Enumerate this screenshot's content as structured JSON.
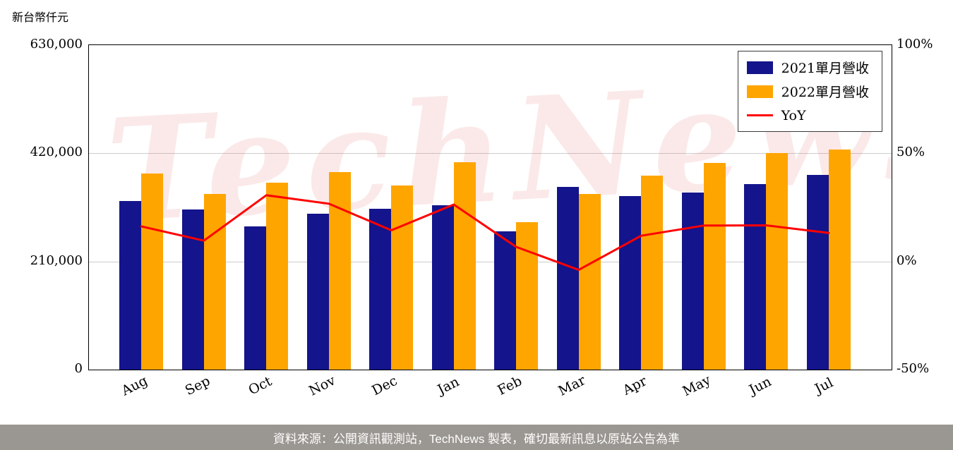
{
  "watermark_text": "TechNews",
  "footer": {
    "source_text": "資料來源：公開資訊觀測站，TechNews 製表，確切最新訊息以原站公告為準"
  },
  "colors": {
    "bar_2021": "#14148C",
    "bar_2022": "#FFA500",
    "yoy_line": "#FF0000",
    "grid": "#CCCCCC",
    "watermark": "rgba(224,96,96,0.14)",
    "footer_bg": "#9A9691",
    "footer_text": "#FFFFFF"
  },
  "chart_data": {
    "type": "bar",
    "title": "",
    "ylabel": "新台幣仟元",
    "categories": [
      "Aug",
      "Sep",
      "Oct",
      "Nov",
      "Dec",
      "Jan",
      "Feb",
      "Mar",
      "Apr",
      "May",
      "Jun",
      "Jul"
    ],
    "series": [
      {
        "key": "2021-monthly-revenue",
        "name": "2021單月營收",
        "type": "bar",
        "color": "#14148C",
        "values": [
          328000,
          311000,
          278000,
          303000,
          312000,
          319000,
          268000,
          355000,
          337000,
          344000,
          360000,
          378000
        ]
      },
      {
        "key": "2022-monthly-revenue",
        "name": "2022單月營收",
        "type": "bar",
        "color": "#FFA500",
        "values": [
          381000,
          341000,
          363000,
          384000,
          357000,
          403000,
          286000,
          341000,
          377000,
          401000,
          420000,
          428000
        ]
      },
      {
        "key": "yoy",
        "name": "YoY",
        "type": "line",
        "color": "#FF0000",
        "axis": "right",
        "values": [
          16.2,
          9.6,
          30.6,
          26.7,
          14.4,
          26.3,
          6.7,
          -3.9,
          11.9,
          16.6,
          16.7,
          13.2
        ]
      }
    ],
    "left_axis": {
      "min": 0,
      "max": 630000,
      "ticks": [
        "630,000",
        "420,000",
        "210,000",
        "0"
      ],
      "tick_values": [
        630000,
        420000,
        210000,
        0
      ]
    },
    "right_axis": {
      "min": -50,
      "max": 100,
      "ticks": [
        "100%",
        "50%",
        "0%",
        "-50%"
      ],
      "tick_values": [
        100,
        50,
        0,
        -50
      ]
    },
    "grid": true,
    "legend_position": "top-right"
  }
}
